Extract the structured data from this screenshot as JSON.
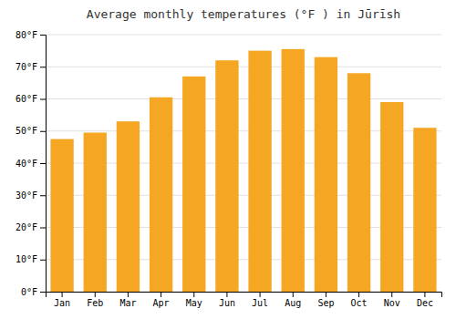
{
  "chart_data": {
    "type": "bar",
    "title": "Average monthly temperatures (°F ) in Jūrīsh",
    "categories": [
      "Jan",
      "Feb",
      "Mar",
      "Apr",
      "May",
      "Jun",
      "Jul",
      "Aug",
      "Sep",
      "Oct",
      "Nov",
      "Dec"
    ],
    "values": [
      47.5,
      49.5,
      53.0,
      60.5,
      67.0,
      72.0,
      75.0,
      75.5,
      73.0,
      68.0,
      59.0,
      51.0
    ],
    "color": "#F5A623",
    "ylim": [
      0,
      80
    ],
    "yticks": [
      {
        "value": 0,
        "label": "0°F"
      },
      {
        "value": 10,
        "label": "10°F"
      },
      {
        "value": 20,
        "label": "20°F"
      },
      {
        "value": 30,
        "label": "30°F"
      },
      {
        "value": 40,
        "label": "40°F"
      },
      {
        "value": 50,
        "label": "50°F"
      },
      {
        "value": 60,
        "label": "60°F"
      },
      {
        "value": 70,
        "label": "70°F"
      },
      {
        "value": 80,
        "label": "80°F"
      }
    ],
    "grid": true
  }
}
